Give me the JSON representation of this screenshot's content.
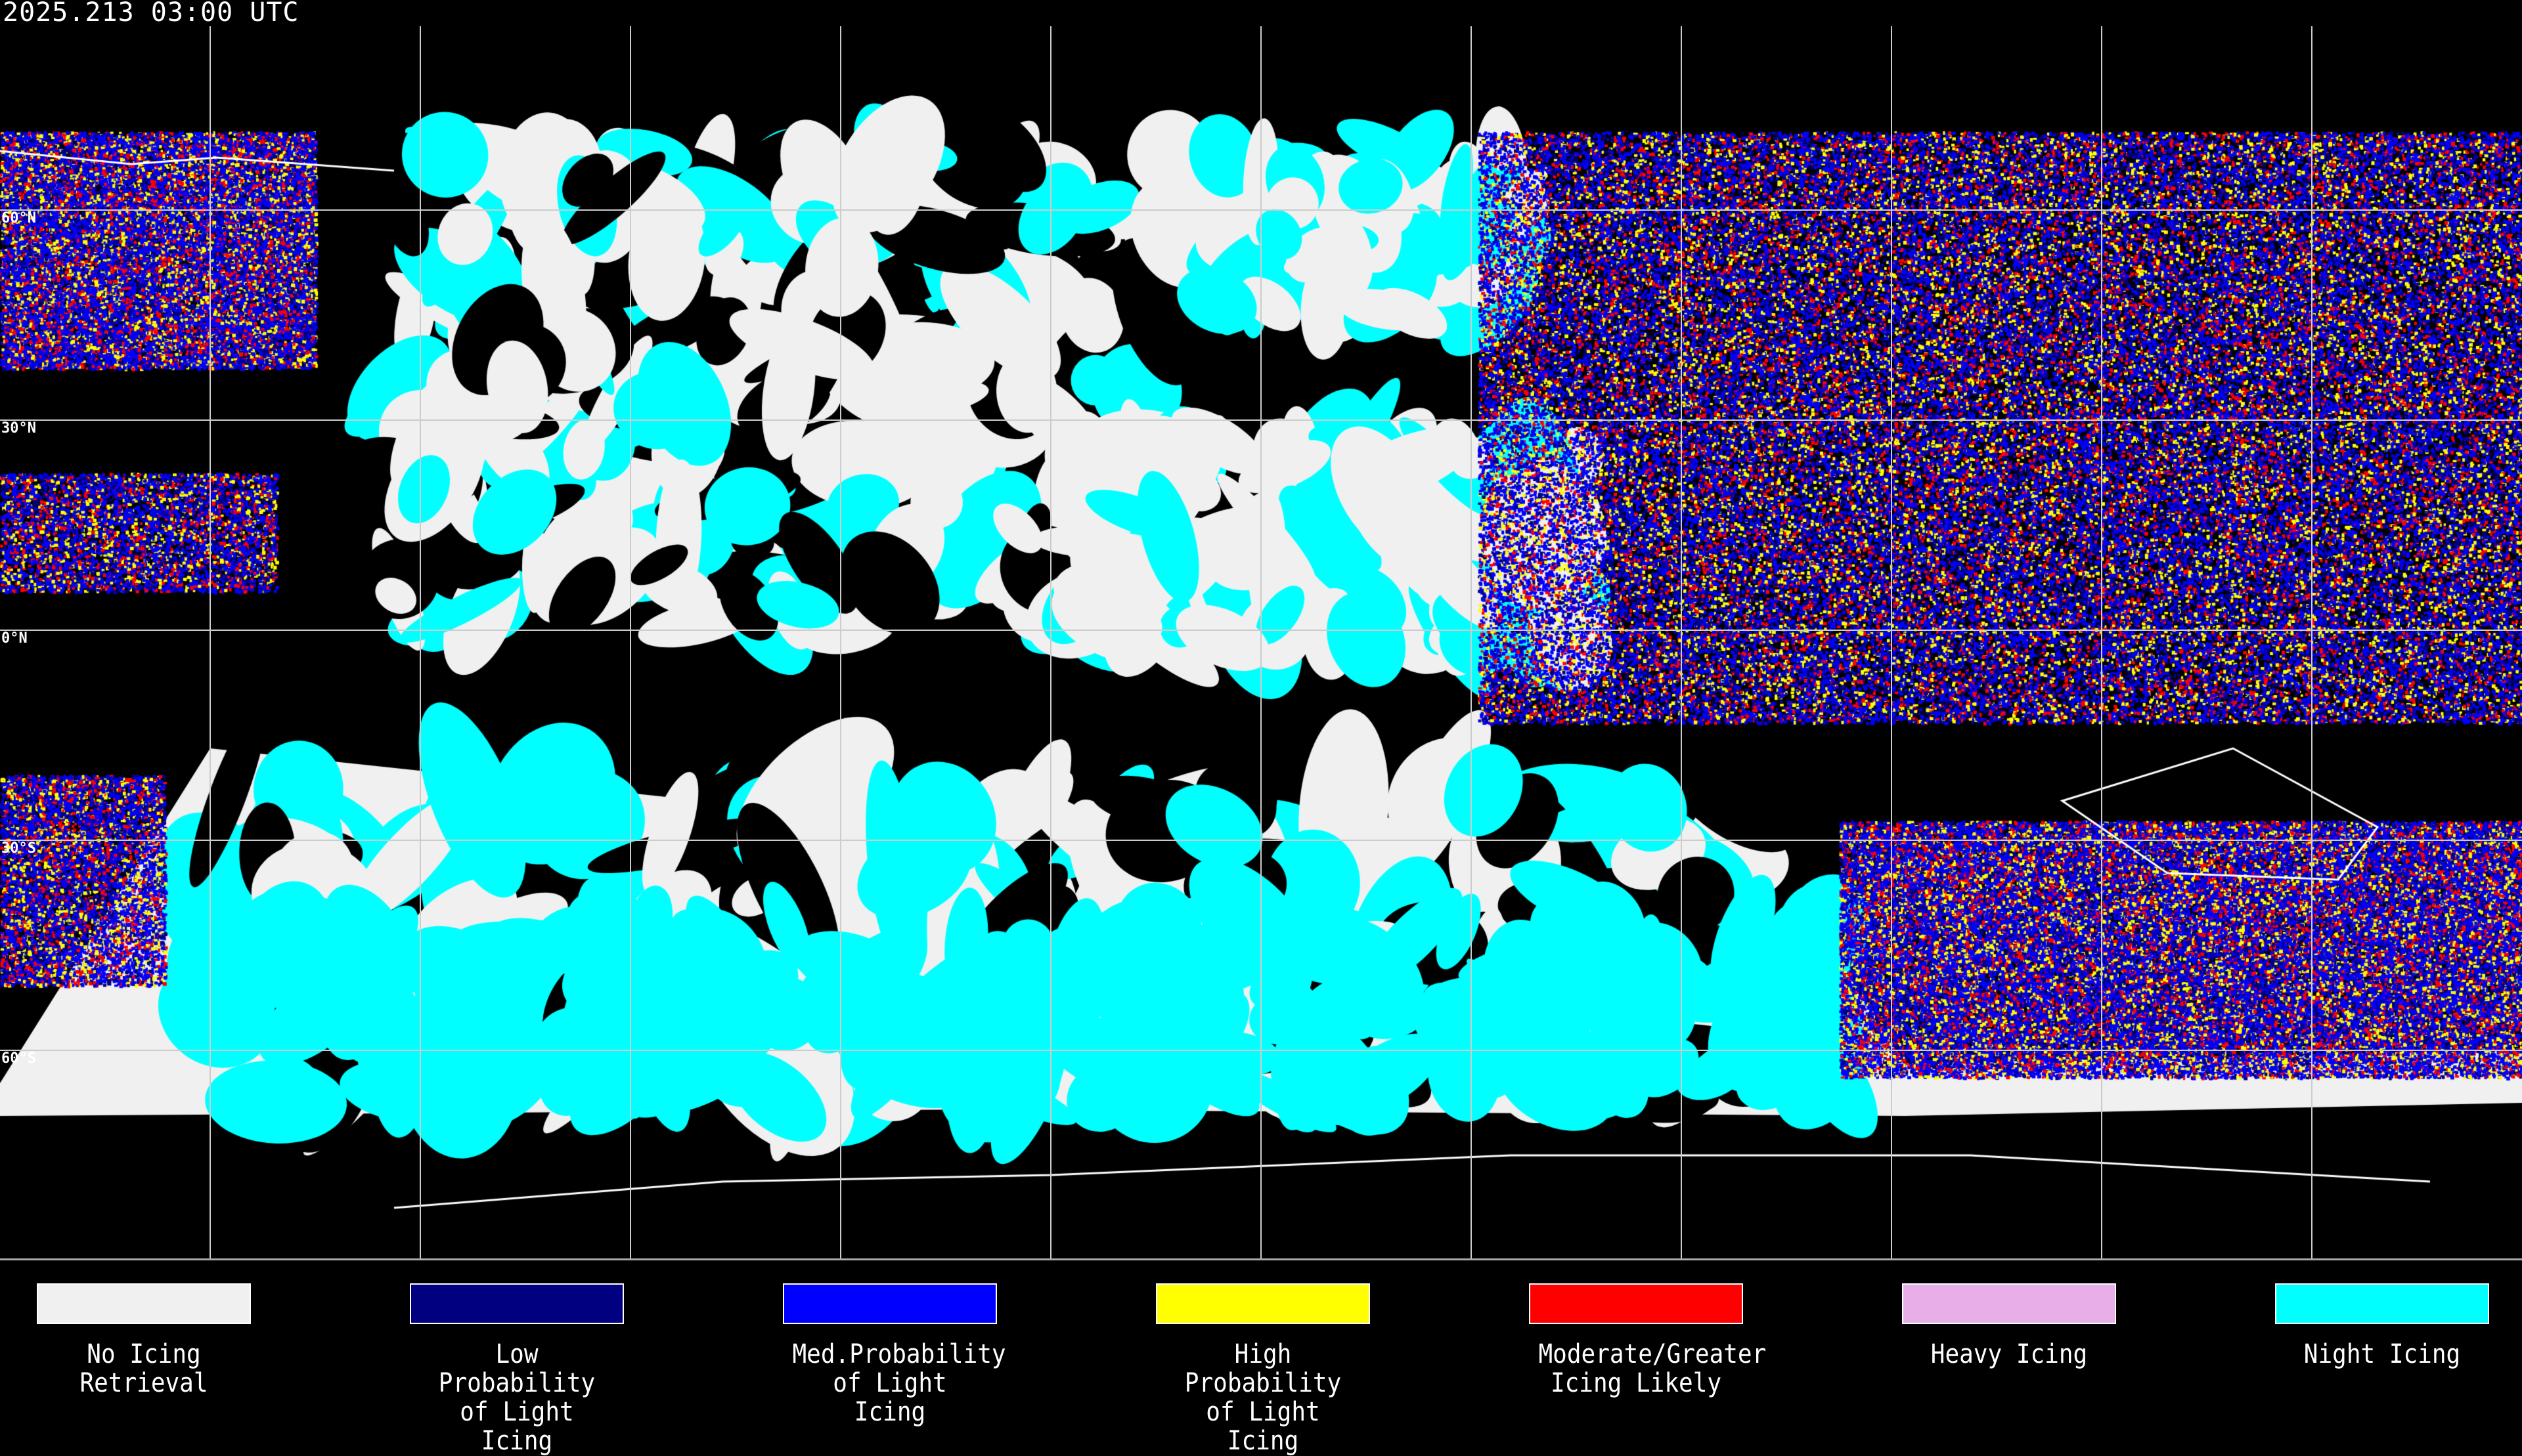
{
  "header": {
    "timestamp": "2025.213 03:00 UTC"
  },
  "map": {
    "projection": "equirectangular",
    "lat_labels": [
      "60°N",
      "30°N",
      "0°N",
      "30°S",
      "60°S"
    ],
    "grid_spacing_deg": 30,
    "background": "#000000",
    "coastline_color": "#ffffff"
  },
  "legend": [
    {
      "label": "No Icing\nRetrieval",
      "color": "#f0f0f0"
    },
    {
      "label": "Low Probability\nof Light Icing",
      "color": "#000080"
    },
    {
      "label": "Med.Probability\nof Light Icing",
      "color": "#0000ff"
    },
    {
      "label": "High Probability\nof Light Icing",
      "color": "#ffff00"
    },
    {
      "label": "Moderate/Greater\nIcing Likely",
      "color": "#ff0000"
    },
    {
      "label": "Heavy Icing",
      "color": "#e8aee8"
    },
    {
      "label": "Night Icing",
      "color": "#00ffff"
    }
  ]
}
